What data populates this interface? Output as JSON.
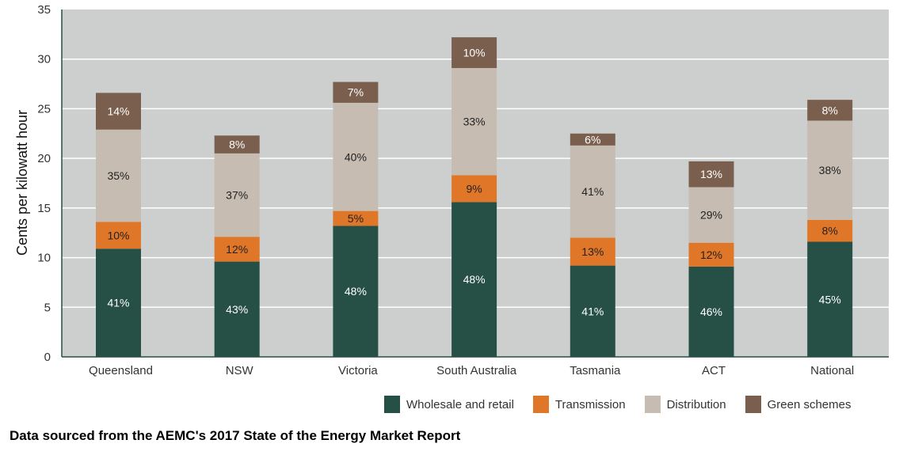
{
  "chart_data": {
    "type": "bar",
    "stacked": true,
    "title": "",
    "xlabel": "",
    "ylabel": "Cents per kilowatt hour",
    "ylim": [
      0,
      35
    ],
    "yticks": [
      0,
      5,
      10,
      15,
      20,
      25,
      30,
      35
    ],
    "grid": true,
    "legend_position": "bottom-right",
    "categories": [
      "Queensland",
      "NSW",
      "Victoria",
      "South Australia",
      "Tasmania",
      "ACT",
      "National"
    ],
    "series": [
      {
        "name": "Wholesale and retail",
        "color": "#264f46",
        "label_color": "#ffffff",
        "values": [
          10.9,
          9.6,
          13.2,
          15.6,
          9.2,
          9.1,
          11.6
        ],
        "labels": [
          "41%",
          "43%",
          "48%",
          "48%",
          "41%",
          "46%",
          "45%"
        ]
      },
      {
        "name": "Transmission",
        "color": "#e07628",
        "label_color": "#222222",
        "values": [
          2.7,
          2.5,
          1.5,
          2.7,
          2.8,
          2.4,
          2.2
        ],
        "labels": [
          "10%",
          "12%",
          "5%",
          "9%",
          "13%",
          "12%",
          "8%"
        ]
      },
      {
        "name": "Distribution",
        "color": "#c6bcb2",
        "label_color": "#222222",
        "values": [
          9.3,
          8.4,
          10.9,
          10.8,
          9.3,
          5.6,
          10.0
        ],
        "labels": [
          "35%",
          "37%",
          "40%",
          "33%",
          "41%",
          "29%",
          "38%"
        ]
      },
      {
        "name": "Green schemes",
        "color": "#7a5f4e",
        "label_color": "#ffffff",
        "values": [
          3.7,
          1.8,
          2.1,
          3.1,
          1.2,
          2.6,
          2.1
        ],
        "labels": [
          "14%",
          "8%",
          "7%",
          "10%",
          "6%",
          "13%",
          "8%"
        ]
      }
    ]
  },
  "colors": {
    "plot_background": "#cccfce",
    "gridline": "#ffffff",
    "axis": "#264f46"
  },
  "footer": {
    "source_note": "Data sourced from the AEMC's 2017 State of the Energy Market Report"
  }
}
